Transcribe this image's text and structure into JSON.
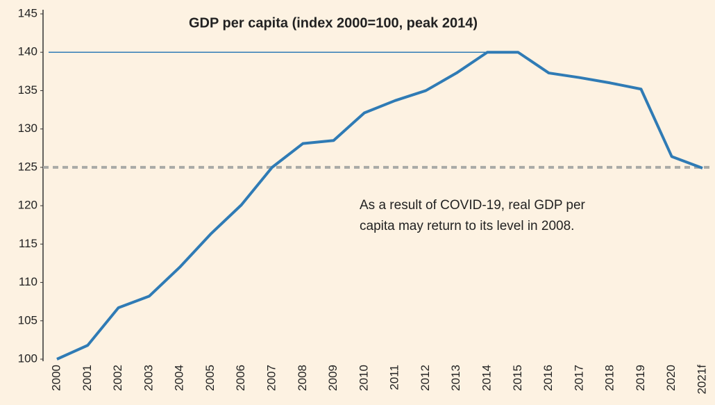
{
  "chart_data": {
    "type": "line",
    "title": "GDP per capita (index 2000=100, peak 2014)",
    "categories": [
      "2000",
      "2001",
      "2002",
      "2003",
      "2004",
      "2005",
      "2006",
      "2007",
      "2008",
      "2009",
      "2010",
      "2011",
      "2012",
      "2013",
      "2014",
      "2015",
      "2016",
      "2017",
      "2018",
      "2019",
      "2020",
      "2021f"
    ],
    "series": [
      {
        "name": "GDP per capita",
        "color": "#2f7bb5",
        "values": [
          100,
          101.8,
          106.7,
          108.2,
          112,
          116.3,
          120.1,
          125,
          128.1,
          128.5,
          132.1,
          133.7,
          135,
          137.3,
          140,
          140,
          137.3,
          136.7,
          136,
          135.2,
          126.4,
          124.9
        ]
      }
    ],
    "ylim": [
      100,
      145
    ],
    "yticks": [
      100,
      105,
      110,
      115,
      120,
      125,
      130,
      135,
      140,
      145
    ],
    "reference_lines": [
      {
        "value": 140,
        "style": "solid",
        "color": "#2f7bb5"
      },
      {
        "value": 125,
        "style": "dashed",
        "color": "#a9aaa6"
      }
    ],
    "annotation": [
      "As a result of COVID-19, real GDP per",
      "capita may return to its level in 2008."
    ],
    "background": "#fdf2e2"
  }
}
